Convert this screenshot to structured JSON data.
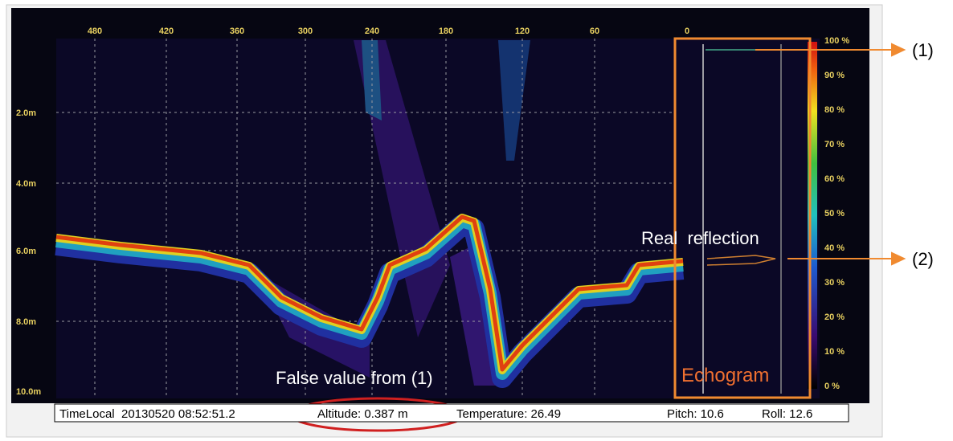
{
  "top_axis": {
    "labels": [
      "480",
      "420",
      "360",
      "300",
      "240",
      "180",
      "120",
      "60",
      "0"
    ]
  },
  "depth_axis": {
    "labels": [
      "2.0m",
      "4.0m",
      "6.0m",
      "8.0m",
      "10.0m"
    ]
  },
  "color_scale": {
    "labels": [
      "100 %",
      "90 %",
      "80 %",
      "70 %",
      "60 %",
      "50 %",
      "40 %",
      "30 %",
      "20 %",
      "10 %",
      "0 %"
    ]
  },
  "annotations": {
    "marker_1": "(1)",
    "marker_2": "(2)",
    "real_reflection": "Real  reflection",
    "false_value": "False value from (1)",
    "echogram": "Echogram"
  },
  "status_bar": {
    "time": "TimeLocal  20130520 08:52:51.2",
    "altitude": "Altitude: 0.387 m",
    "temperature": "Temperature: 26.49",
    "pitch": "Pitch: 10.6",
    "roll": "Roll: 12.6"
  }
}
